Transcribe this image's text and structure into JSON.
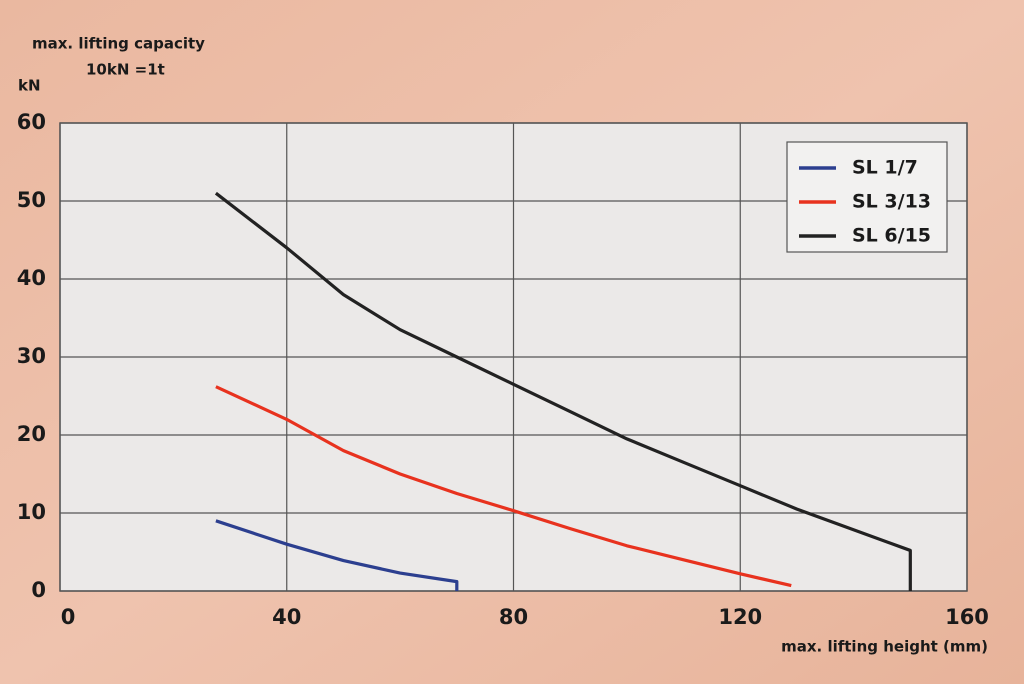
{
  "chart_data": {
    "type": "line",
    "title": "max. lifting capacity",
    "subtitle": "10kN =1t",
    "y_label": "kN",
    "x_label": "max. lifting height (mm)",
    "xlim": [
      0,
      160
    ],
    "xticks": [
      0,
      40,
      80,
      120,
      160
    ],
    "ylim": [
      0,
      60
    ],
    "yticks": [
      0,
      10,
      20,
      30,
      40,
      50,
      60
    ],
    "grid": true,
    "legend": "upper right",
    "series": [
      {
        "name": "SL 1/7",
        "color": "#2c3f8f",
        "x": [
          27.5,
          35,
          40,
          50,
          60,
          70,
          70
        ],
        "values": [
          9,
          7.2,
          6,
          3.9,
          2.3,
          1.2,
          0
        ]
      },
      {
        "name": "SL 3/13",
        "color": "#e8321e",
        "x": [
          27.5,
          40,
          50,
          60,
          70,
          80,
          90,
          100,
          110,
          120,
          129
        ],
        "values": [
          26.2,
          22,
          18,
          15,
          12.5,
          10.3,
          8,
          5.8,
          4,
          2.2,
          0.7
        ]
      },
      {
        "name": "SL 6/15",
        "color": "#222222",
        "x": [
          27.5,
          40,
          50,
          60,
          70,
          80,
          90,
          100,
          110,
          120,
          130,
          150,
          150
        ],
        "values": [
          51,
          44,
          38,
          33.5,
          30,
          26.5,
          23,
          19.5,
          16.5,
          13.5,
          10.5,
          5.2,
          0
        ]
      }
    ]
  }
}
